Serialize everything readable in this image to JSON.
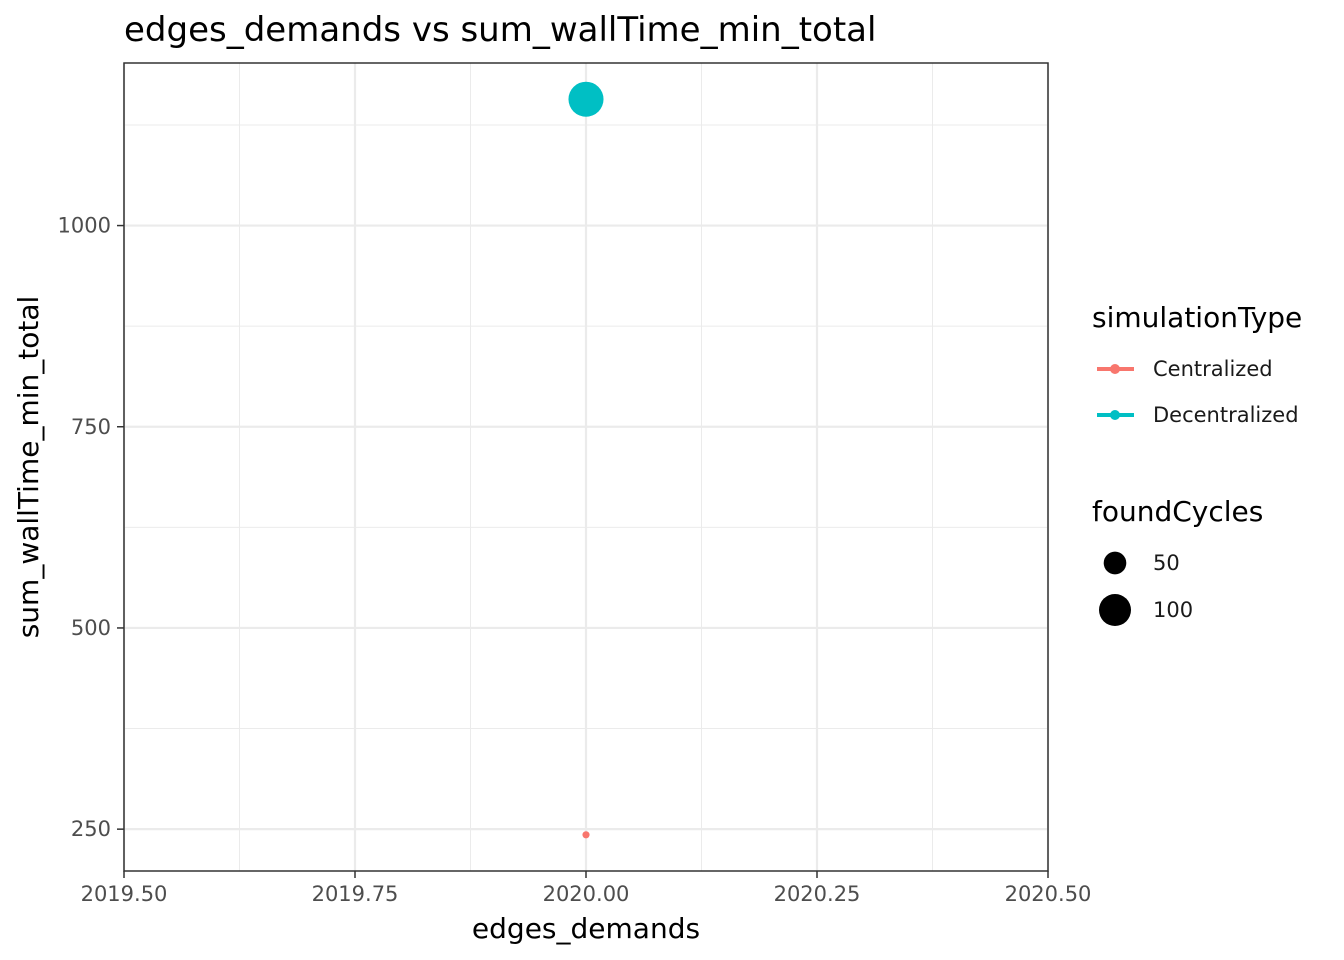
{
  "chart_data": {
    "type": "scatter",
    "title": "edges_demands  vs  sum_wallTime_min_total",
    "xlabel": "edges_demands",
    "ylabel": "sum_wallTime_min_total",
    "xlim": [
      2019.5,
      2020.5
    ],
    "ylim": [
      198,
      1202
    ],
    "x_ticks": [
      "2019.50",
      "2019.75",
      "2020.00",
      "2020.25",
      "2020.50"
    ],
    "x_tick_values": [
      2019.5,
      2019.75,
      2020.0,
      2020.25,
      2020.5
    ],
    "y_ticks": [
      "250",
      "500",
      "750",
      "1000"
    ],
    "y_tick_values": [
      250,
      500,
      750,
      1000
    ],
    "grid": true,
    "legend_position": "right",
    "color_legend": {
      "title": "simulationType",
      "entries": [
        {
          "label": "Centralized",
          "color": "#F8766D"
        },
        {
          "label": "Decentralized",
          "color": "#00BFC4"
        }
      ]
    },
    "size_legend": {
      "title": "foundCycles",
      "entries": [
        {
          "label": "50",
          "value": 50
        },
        {
          "label": "100",
          "value": 100
        }
      ]
    },
    "series": [
      {
        "name": "Centralized",
        "color": "#F8766D",
        "points": [
          {
            "x": 2020.0,
            "y": 243,
            "foundCycles": 5
          }
        ]
      },
      {
        "name": "Decentralized",
        "color": "#00BFC4",
        "points": [
          {
            "x": 2020.0,
            "y": 1157,
            "foundCycles": 120
          }
        ]
      }
    ]
  }
}
